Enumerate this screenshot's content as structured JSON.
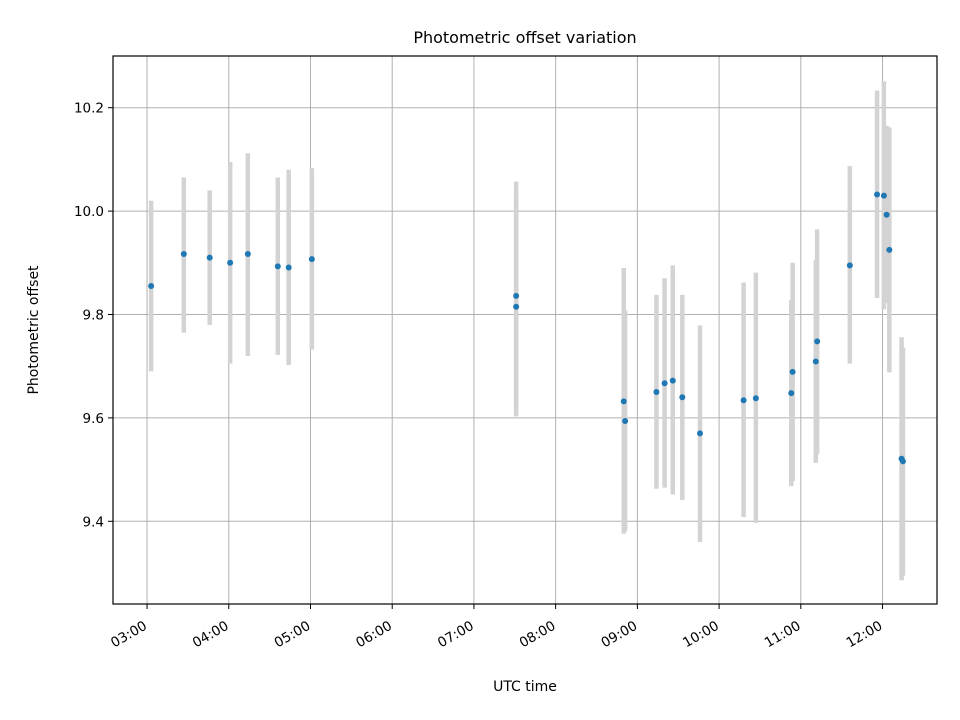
{
  "chart_data": {
    "type": "scatter",
    "title": "Photometric offset variation",
    "xlabel": "UTC time",
    "ylabel": "Photometric offset",
    "xlim": [
      "02:35",
      "12:40"
    ],
    "ylim": [
      9.24,
      10.3
    ],
    "grid": true,
    "x_ticks": [
      "03:00",
      "04:00",
      "05:00",
      "06:00",
      "07:00",
      "08:00",
      "09:00",
      "10:00",
      "11:00",
      "12:00"
    ],
    "y_ticks": [
      "9.4",
      "9.6",
      "9.8",
      "10.0",
      "10.2"
    ],
    "marker_color": "#1f77b4",
    "errorbar_color": "#d3d3d3",
    "points": [
      {
        "x": "03:03",
        "y": 9.855,
        "ylow": 9.69,
        "yhigh": 10.02
      },
      {
        "x": "03:27",
        "y": 9.917,
        "ylow": 9.765,
        "yhigh": 10.065
      },
      {
        "x": "03:46",
        "y": 9.91,
        "ylow": 9.78,
        "yhigh": 10.04
      },
      {
        "x": "04:01",
        "y": 9.9,
        "ylow": 9.705,
        "yhigh": 10.095
      },
      {
        "x": "04:14",
        "y": 9.917,
        "ylow": 9.72,
        "yhigh": 10.112
      },
      {
        "x": "04:36",
        "y": 9.893,
        "ylow": 9.722,
        "yhigh": 10.065
      },
      {
        "x": "04:44",
        "y": 9.891,
        "ylow": 9.702,
        "yhigh": 10.08
      },
      {
        "x": "05:01",
        "y": 9.907,
        "ylow": 9.732,
        "yhigh": 10.083
      },
      {
        "x": "07:31",
        "y": 9.836,
        "ylow": 9.615,
        "yhigh": 10.057
      },
      {
        "x": "07:31",
        "y": 9.815,
        "ylow": 9.603,
        "yhigh": 10.027
      },
      {
        "x": "08:50",
        "y": 9.632,
        "ylow": 9.376,
        "yhigh": 9.89
      },
      {
        "x": "08:51",
        "y": 9.594,
        "ylow": 9.381,
        "yhigh": 9.808
      },
      {
        "x": "09:14",
        "y": 9.65,
        "ylow": 9.463,
        "yhigh": 9.838
      },
      {
        "x": "09:20",
        "y": 9.667,
        "ylow": 9.465,
        "yhigh": 9.87
      },
      {
        "x": "09:26",
        "y": 9.672,
        "ylow": 9.452,
        "yhigh": 9.895
      },
      {
        "x": "09:33",
        "y": 9.64,
        "ylow": 9.441,
        "yhigh": 9.838
      },
      {
        "x": "09:46",
        "y": 9.57,
        "ylow": 9.36,
        "yhigh": 9.779
      },
      {
        "x": "10:18",
        "y": 9.634,
        "ylow": 9.408,
        "yhigh": 9.862
      },
      {
        "x": "10:27",
        "y": 9.638,
        "ylow": 9.397,
        "yhigh": 9.881
      },
      {
        "x": "10:53",
        "y": 9.648,
        "ylow": 9.468,
        "yhigh": 9.828
      },
      {
        "x": "10:54",
        "y": 9.689,
        "ylow": 9.478,
        "yhigh": 9.9
      },
      {
        "x": "11:11",
        "y": 9.709,
        "ylow": 9.513,
        "yhigh": 9.905
      },
      {
        "x": "11:12",
        "y": 9.748,
        "ylow": 9.53,
        "yhigh": 9.965
      },
      {
        "x": "11:36",
        "y": 9.895,
        "ylow": 9.705,
        "yhigh": 10.087
      },
      {
        "x": "11:56",
        "y": 10.032,
        "ylow": 9.832,
        "yhigh": 10.233
      },
      {
        "x": "12:01",
        "y": 10.03,
        "ylow": 9.81,
        "yhigh": 10.251
      },
      {
        "x": "12:03",
        "y": 9.993,
        "ylow": 9.822,
        "yhigh": 10.165
      },
      {
        "x": "12:05",
        "y": 9.925,
        "ylow": 9.688,
        "yhigh": 10.162
      },
      {
        "x": "12:14",
        "y": 9.521,
        "ylow": 9.286,
        "yhigh": 9.756
      },
      {
        "x": "12:15",
        "y": 9.516,
        "ylow": 9.295,
        "yhigh": 9.736
      }
    ]
  }
}
